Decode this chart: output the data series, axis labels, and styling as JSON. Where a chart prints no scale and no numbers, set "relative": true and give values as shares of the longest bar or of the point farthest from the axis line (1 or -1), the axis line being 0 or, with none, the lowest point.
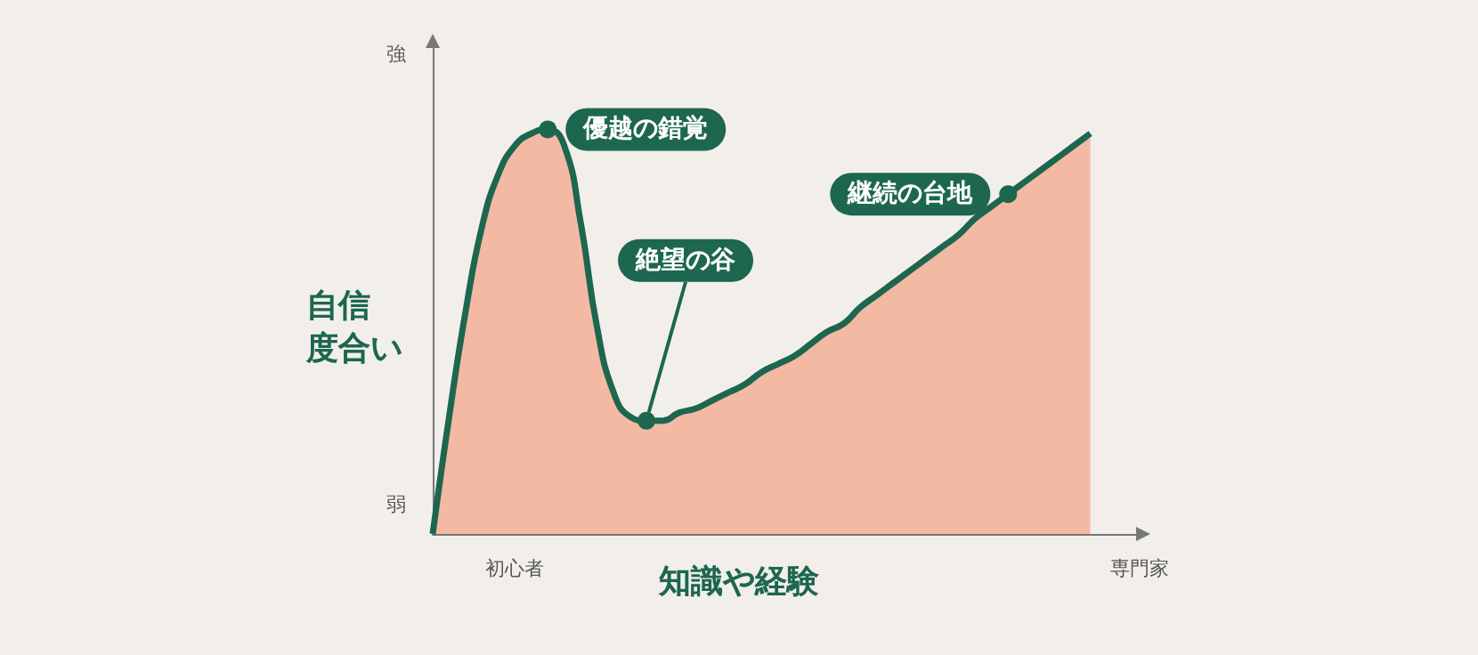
{
  "chart_data": {
    "type": "area",
    "relative": true,
    "xlabel": "知識や経験",
    "ylabel": "自信度合い",
    "categories": [
      null,
      null,
      null,
      null,
      null,
      "初心者",
      null,
      null,
      null,
      null,
      null,
      null,
      null,
      null,
      null,
      null,
      null,
      null,
      null,
      null,
      null,
      null,
      null,
      null,
      null,
      null,
      null,
      null,
      null,
      null,
      null,
      null,
      null,
      null,
      null,
      null,
      null,
      null,
      null,
      null,
      null,
      null,
      null,
      "専門家"
    ],
    "series": [
      {
        "color": "#f4b9a3",
        "values": [
          0,
          0.29,
          0.55,
          0.76,
          0.89,
          0.96,
          0.99,
          1,
          0.96,
          0.77,
          0.51,
          0.35,
          0.29,
          0.28,
          0.28,
          0.3,
          0.31,
          0.33,
          0.35,
          0.37,
          0.4,
          0.42,
          0.44,
          0.47,
          0.5,
          0.52,
          0.56,
          0.59,
          0.62,
          0.65,
          0.68,
          0.71,
          0.74,
          0.78,
          0.81,
          0.84,
          0.87,
          0.9,
          0.93,
          0.96,
          0.99,
          null,
          null,
          null
        ]
      }
    ],
    "annotations": [
      "強",
      "弱",
      "優越の錯覚",
      "絶望の谷",
      "継続の台地"
    ],
    "grid": false
  }
}
